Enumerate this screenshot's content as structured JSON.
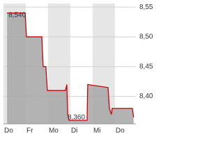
{
  "chart_data": {
    "type": "area",
    "x": [
      0.16,
      0.97,
      1.03,
      1.72,
      1.78,
      1.9,
      1.97,
      2.78,
      2.84,
      2.88,
      2.94,
      3.75,
      3.78,
      4.69,
      4.75,
      4.84,
      4.88,
      5.78,
      5.84
    ],
    "values": [
      8.54,
      8.54,
      8.5,
      8.5,
      8.45,
      8.45,
      8.41,
      8.41,
      8.42,
      8.37,
      8.36,
      8.36,
      8.42,
      8.415,
      8.38,
      8.37,
      8.38,
      8.38,
      8.365
    ],
    "color": "#cc0000",
    "fill": "#a6a6a6",
    "xlim": [
      0,
      5.94
    ],
    "xticks": [
      {
        "value": 0,
        "label": "Do"
      },
      {
        "value": 1,
        "label": "Fr"
      },
      {
        "value": 2,
        "label": "Mo"
      },
      {
        "value": 3,
        "label": "Di"
      },
      {
        "value": 4,
        "label": "Mi"
      },
      {
        "value": 5,
        "label": "Do"
      }
    ],
    "ylim": [
      8.354,
      8.556
    ],
    "yticks": [
      {
        "value": 8.4,
        "label": "8,40"
      },
      {
        "value": 8.45,
        "label": "8,45"
      },
      {
        "value": 8.5,
        "label": "8,50"
      },
      {
        "value": 8.55,
        "label": "8,55"
      }
    ],
    "grid": true,
    "annotations": [
      {
        "label": "8,540",
        "value": 8.54
      },
      {
        "label": "8,360",
        "value": 8.36
      }
    ]
  }
}
